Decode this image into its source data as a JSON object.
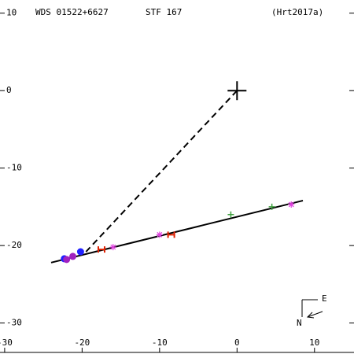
{
  "chart_data": {
    "type": "scatter",
    "title": "WDS 01522+6627",
    "subtitle": "STF 167",
    "reference": "(Hrt2017a)",
    "compass": {
      "east": "E",
      "north": "N"
    },
    "xlim": [
      -30.6,
      15.1
    ],
    "ylim": [
      -34.0,
      11.7
    ],
    "xticks": [
      -30,
      -20,
      -10,
      0,
      10
    ],
    "yticks": [
      10,
      0,
      -10,
      -20,
      -30
    ],
    "fit_line": {
      "x": [
        -24,
        8.5
      ],
      "y": [
        -22.2,
        -14.2
      ],
      "color": "#000000"
    },
    "dashed_line": {
      "x": [
        0,
        -19.5
      ],
      "y": [
        0,
        -20.8
      ],
      "color": "#000000"
    },
    "series": [
      {
        "marker": "circle",
        "color": "#2020ff",
        "x": [
          -22.3,
          -20.2
        ],
        "y": [
          -21.7,
          -20.8
        ]
      },
      {
        "marker": "circle",
        "color": "#a020c0",
        "x": [
          -22.0,
          -21.2
        ],
        "y": [
          -21.8,
          -21.4
        ]
      },
      {
        "marker": "h",
        "color": "#e02000",
        "x": [
          -17.5,
          -8.5
        ],
        "y": [
          -20.5,
          -18.6
        ]
      },
      {
        "marker": "asterisk",
        "color": "#e040e0",
        "x": [
          -16.0,
          -10.0,
          7.0
        ],
        "y": [
          -20.2,
          -18.6,
          -14.7
        ]
      },
      {
        "marker": "plus",
        "color": "#40a040",
        "x": [
          -0.8,
          4.5
        ],
        "y": [
          -16.0,
          -15.0
        ]
      }
    ]
  }
}
